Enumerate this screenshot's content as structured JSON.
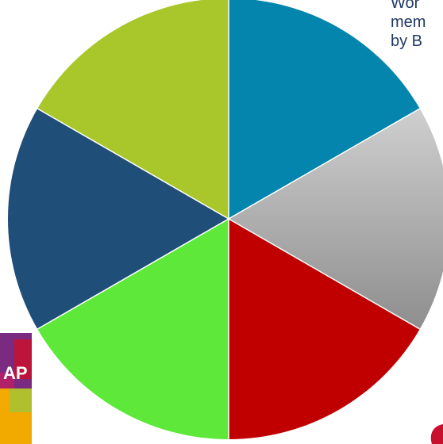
{
  "background_text": {
    "lines": [
      "Wor",
      "mem",
      "by B"
    ]
  },
  "logo": {
    "name": "corner-logo",
    "letters": "AP",
    "colors": [
      "#7a2a80",
      "#c8102e",
      "#f2a900"
    ]
  },
  "chart_data": {
    "type": "pie",
    "title": "",
    "start_angle_deg": 0,
    "direction": "clockwise",
    "slices": [
      {
        "value": 1,
        "color": "#0485ad"
      },
      {
        "value": 1,
        "color": "#a6a6a6"
      },
      {
        "value": 1,
        "color": "#c00000"
      },
      {
        "value": 1,
        "color": "#5de83a"
      },
      {
        "value": 1,
        "color": "#1f4e79"
      },
      {
        "value": 1,
        "color": "#a9c62a"
      }
    ]
  }
}
